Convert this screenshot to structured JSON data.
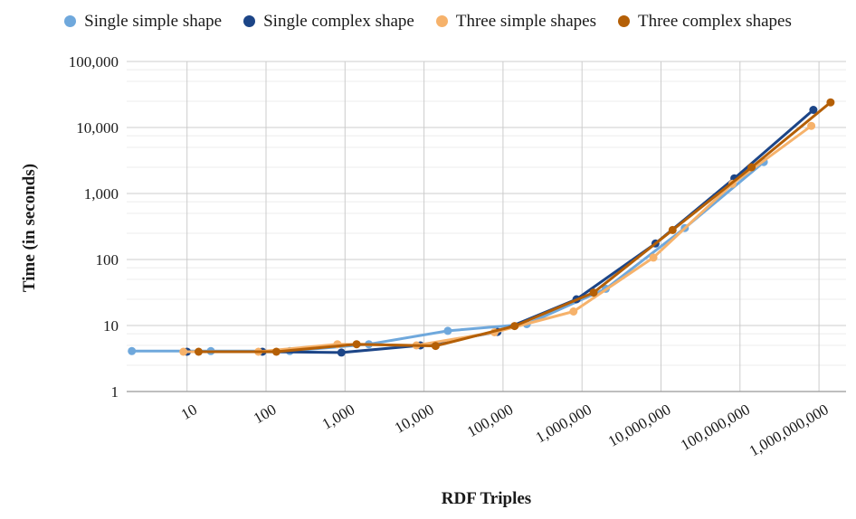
{
  "legend": {
    "items": [
      {
        "label": "Single simple shape",
        "color": "#6fa8dc"
      },
      {
        "label": "Single complex shape",
        "color": "#1c4587"
      },
      {
        "label": "Three simple shapes",
        "color": "#f6b26b"
      },
      {
        "label": "Three complex shapes",
        "color": "#b45f06"
      }
    ]
  },
  "axes": {
    "y": {
      "title": "Time (in seconds)",
      "tick_labels": [
        "1",
        "10",
        "100",
        "1,000",
        "10,000",
        "100,000"
      ],
      "tick_values": [
        1,
        10,
        100,
        1000,
        10000,
        100000
      ]
    },
    "x": {
      "title": "RDF Triples",
      "tick_labels": [
        "10",
        "100",
        "1,000",
        "10,000",
        "100,000",
        "1,000,000",
        "10,000,000",
        "100,000,000",
        "1,000,000,000"
      ],
      "tick_values": [
        10,
        100,
        1000,
        10000,
        100000,
        1000000,
        10000000,
        100000000,
        1000000000
      ]
    }
  },
  "style": {
    "major_gridline_color": "#cccccc",
    "minor_gridline_color": "#ececec",
    "axis_line_color": "#999999",
    "background": "#ffffff",
    "line_width": 3,
    "point_radius": 4.5
  },
  "chart_data": {
    "type": "line",
    "title": "",
    "xlabel": "RDF Triples",
    "ylabel": "Time (in seconds)",
    "x_scale": "log",
    "y_scale": "log",
    "x_range": [
      1.72,
      2200000000
    ],
    "y_range": [
      1,
      100000
    ],
    "grid": true,
    "minor_gridline_multipliers": [
      2.5,
      5,
      7.5
    ],
    "legend_position": "top",
    "series": [
      {
        "name": "Single simple shape",
        "color": "#6fa8dc",
        "x": [
          2,
          20,
          200,
          2000,
          20000,
          200000,
          2000000,
          20000000,
          200000000
        ],
        "y": [
          4.1,
          4.1,
          4.1,
          5.2,
          8.3,
          10.5,
          36,
          300,
          3000
        ]
      },
      {
        "name": "Single complex shape",
        "color": "#1c4587",
        "x": [
          10,
          90,
          900,
          9000,
          85000,
          850000,
          8500000,
          85000000,
          850000000
        ],
        "y": [
          4.0,
          4.0,
          3.9,
          5.0,
          8.0,
          25,
          175,
          1700,
          18500
        ]
      },
      {
        "name": "Three simple shapes",
        "color": "#f6b26b",
        "x": [
          9,
          80,
          800,
          8000,
          78000,
          780000,
          8000000,
          80000000,
          800000000
        ],
        "y": [
          4.0,
          4.0,
          5.2,
          5.0,
          7.9,
          16.3,
          107,
          1400,
          10600
        ]
      },
      {
        "name": "Three complex shapes",
        "color": "#b45f06",
        "x": [
          14,
          135,
          1400,
          14000,
          140000,
          1400000,
          14000000,
          140000000,
          1400000000
        ],
        "y": [
          4.0,
          4.0,
          5.2,
          4.9,
          9.8,
          31.5,
          280,
          2500,
          24000
        ]
      }
    ]
  }
}
